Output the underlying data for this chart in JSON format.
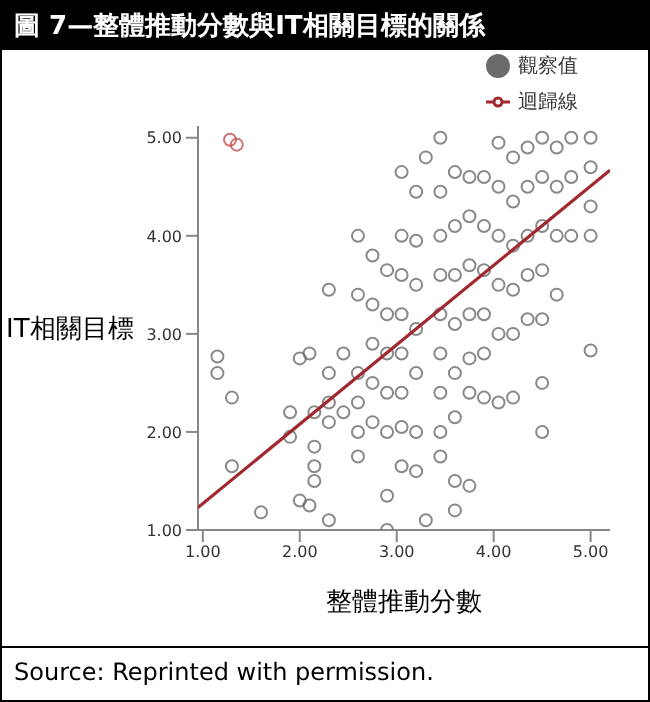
{
  "chart_data": {
    "type": "scatter",
    "title": "圖 7—整體推動分數與IT相關目標的關係",
    "xlabel": "整體推動分數",
    "ylabel": "IT相關目標",
    "annotations": [
      "Source:  Reprinted with permission."
    ],
    "xlim": [
      0.95,
      5.2
    ],
    "ylim": [
      1,
      5.12
    ],
    "xticks": [
      {
        "value": 1,
        "label": "1.00"
      },
      {
        "value": 2,
        "label": "2.00"
      },
      {
        "value": 3,
        "label": "3.00"
      },
      {
        "value": 4,
        "label": "4.00"
      },
      {
        "value": 5,
        "label": "5.00"
      }
    ],
    "yticks": [
      {
        "value": 1,
        "label": "1.00"
      },
      {
        "value": 2,
        "label": "2.00"
      },
      {
        "value": 3,
        "label": "3.00"
      },
      {
        "value": 4,
        "label": "4.00"
      },
      {
        "value": 5,
        "label": "5.00"
      }
    ],
    "legend": "top right",
    "grid": false,
    "series": [
      {
        "name": "觀察值",
        "type": "scatter",
        "marker": "circle",
        "color": "#6b6b6b",
        "x": [
          1.15,
          1.15,
          1.3,
          1.3,
          1.6,
          1.9,
          1.9,
          2.0,
          2.0,
          2.1,
          2.1,
          2.3,
          2.3,
          2.15,
          2.15,
          2.15,
          2.15,
          2.3,
          2.3,
          2.3,
          2.45,
          2.45,
          2.6,
          2.6,
          2.6,
          2.6,
          2.6,
          2.6,
          2.75,
          2.75,
          2.75,
          2.75,
          2.75,
          2.9,
          2.9,
          2.9,
          2.9,
          2.9,
          2.9,
          2.9,
          3.05,
          3.05,
          3.05,
          3.05,
          3.05,
          3.05,
          3.05,
          3.05,
          3.2,
          3.2,
          3.2,
          3.2,
          3.2,
          3.2,
          3.2,
          3.3,
          3.3,
          3.45,
          3.45,
          3.45,
          3.45,
          3.45,
          3.45,
          3.45,
          3.45,
          3.45,
          3.6,
          3.6,
          3.6,
          3.6,
          3.6,
          3.6,
          3.6,
          3.6,
          3.75,
          3.75,
          3.75,
          3.75,
          3.75,
          3.75,
          3.75,
          3.9,
          3.9,
          3.9,
          3.9,
          3.9,
          3.9,
          4.05,
          4.05,
          4.05,
          4.05,
          4.05,
          4.05,
          4.2,
          4.2,
          4.2,
          4.2,
          4.2,
          4.2,
          4.35,
          4.35,
          4.35,
          4.35,
          4.35,
          4.5,
          4.5,
          4.5,
          4.5,
          4.5,
          4.5,
          4.5,
          4.65,
          4.65,
          4.65,
          4.65,
          4.8,
          4.8,
          4.8,
          5.0,
          5.0,
          5.0,
          5.0,
          5.0
        ],
        "values": [
          2.77,
          2.6,
          2.35,
          1.65,
          1.18,
          2.2,
          1.95,
          1.3,
          2.75,
          2.8,
          1.25,
          1.1,
          3.45,
          2.2,
          1.85,
          1.65,
          1.5,
          2.3,
          2.1,
          2.6,
          2.2,
          2.8,
          4.0,
          3.4,
          2.6,
          2.3,
          2.0,
          1.75,
          3.8,
          3.3,
          2.9,
          2.5,
          2.1,
          3.65,
          3.2,
          2.8,
          2.4,
          2.0,
          1.35,
          1.0,
          4.65,
          4.0,
          3.6,
          3.2,
          2.8,
          2.4,
          2.05,
          1.65,
          4.45,
          3.95,
          3.5,
          3.05,
          2.6,
          2.0,
          1.6,
          4.8,
          1.1,
          5.0,
          4.45,
          4.0,
          3.6,
          3.2,
          2.8,
          2.4,
          2.0,
          1.75,
          4.65,
          4.1,
          3.6,
          3.1,
          2.6,
          2.15,
          1.5,
          1.2,
          4.6,
          4.2,
          3.7,
          3.2,
          2.75,
          2.4,
          1.45,
          4.6,
          4.1,
          3.65,
          3.2,
          2.8,
          2.35,
          4.95,
          4.5,
          4.0,
          3.5,
          3.0,
          2.3,
          4.8,
          4.35,
          3.9,
          3.45,
          3.0,
          2.35,
          4.9,
          4.5,
          4.0,
          3.6,
          3.15,
          5.0,
          4.6,
          4.1,
          3.65,
          3.15,
          2.5,
          2.0,
          4.9,
          4.5,
          4.0,
          3.4,
          5.0,
          4.6,
          4.0,
          5.0,
          4.7,
          4.3,
          4.0,
          2.83
        ]
      },
      {
        "type": "scatter",
        "marker": "circle",
        "color": "#c0504d",
        "x": [
          1.28,
          1.35
        ],
        "values": [
          4.98,
          4.93
        ]
      },
      {
        "name": "迴歸線",
        "type": "line",
        "marker": "none",
        "color": "#a0282f",
        "x": [
          0.95,
          5.2
        ],
        "values": [
          1.23,
          4.67
        ]
      }
    ]
  }
}
